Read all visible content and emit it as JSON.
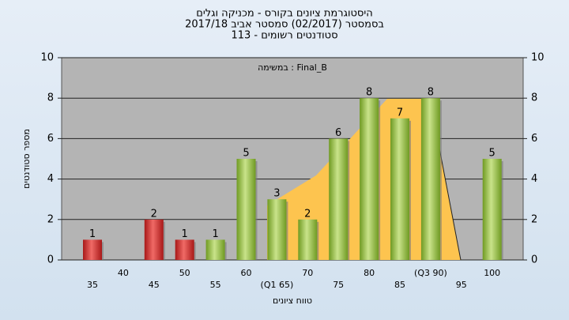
{
  "chart_data": {
    "type": "bar",
    "title": "היסטוגרמת ציונים בקורס - מכניקה וגלים",
    "subtitle": "בסמסטר  (02/2017)  סמסטר אביב 2017/18",
    "subtitle2": "סטודנטים רשומים - 113",
    "annotation": "Final_B : במשימה",
    "y_label": "מספר סטודנטים",
    "x_label": "טווח ציונים",
    "categories": [
      "35",
      "40",
      "45",
      "50",
      "55",
      "60",
      "(Q1 65)",
      "70",
      "75",
      "80",
      "85",
      "(Q3 90)",
      "95",
      "100"
    ],
    "values": [
      1,
      null,
      2,
      1,
      1,
      5,
      3,
      2,
      6,
      8,
      7,
      8,
      null,
      5
    ],
    "colors": [
      "#d8302e",
      null,
      "#d8302e",
      "#d8302e",
      "#94c03c",
      "#94c03c",
      "#94c03c",
      "#94c03c",
      "#94c03c",
      "#94c03c",
      "#94c03c",
      "#94c03c",
      null,
      "#94c03c"
    ],
    "ylim": [
      0,
      10
    ],
    "yticks": [
      0,
      2,
      4,
      6,
      8,
      10
    ],
    "grid": true,
    "right_axis": true
  }
}
